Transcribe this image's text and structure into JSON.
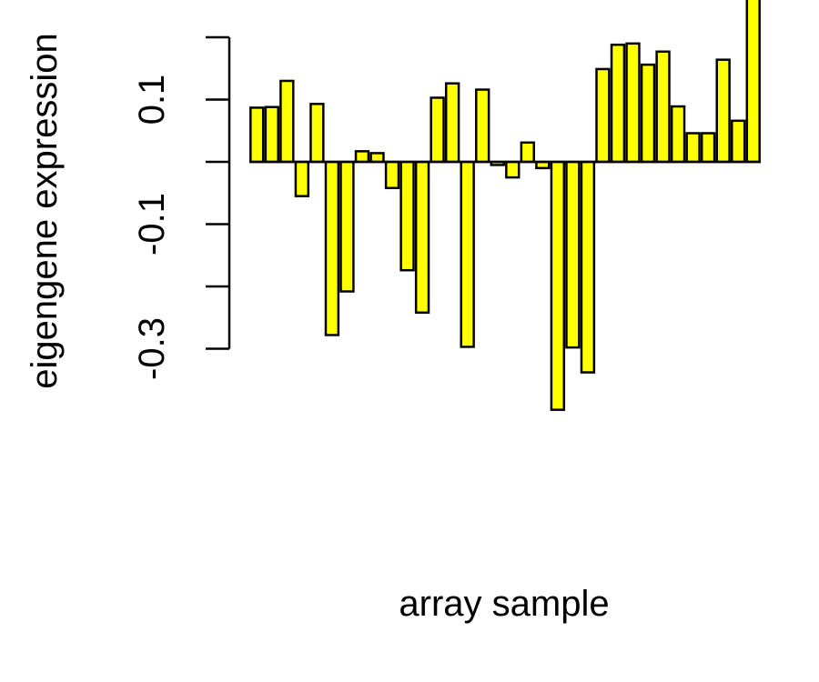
{
  "chart_data": {
    "type": "bar",
    "title": "",
    "xlabel": "array sample",
    "ylabel": "eigengene expression",
    "ylim": [
      -0.3,
      0.2
    ],
    "yticks": [
      -0.3,
      -0.1,
      0.1
    ],
    "ytick_labels": [
      "-0.3",
      "-0.1",
      "0.1"
    ],
    "bar_color": "#ffff00",
    "bar_edge_color": "#000000",
    "n_samples": 34,
    "values": [
      0.087,
      0.088,
      0.13,
      -0.055,
      0.093,
      -0.278,
      -0.208,
      0.017,
      0.014,
      -0.042,
      -0.174,
      -0.242,
      0.103,
      0.126,
      -0.297,
      0.116,
      -0.005,
      -0.025,
      0.031,
      -0.01,
      -0.398,
      -0.298,
      -0.338,
      0.149,
      0.188,
      0.19,
      0.156,
      0.177,
      0.089,
      0.046,
      0.046,
      0.164,
      0.066,
      0.265
    ]
  }
}
